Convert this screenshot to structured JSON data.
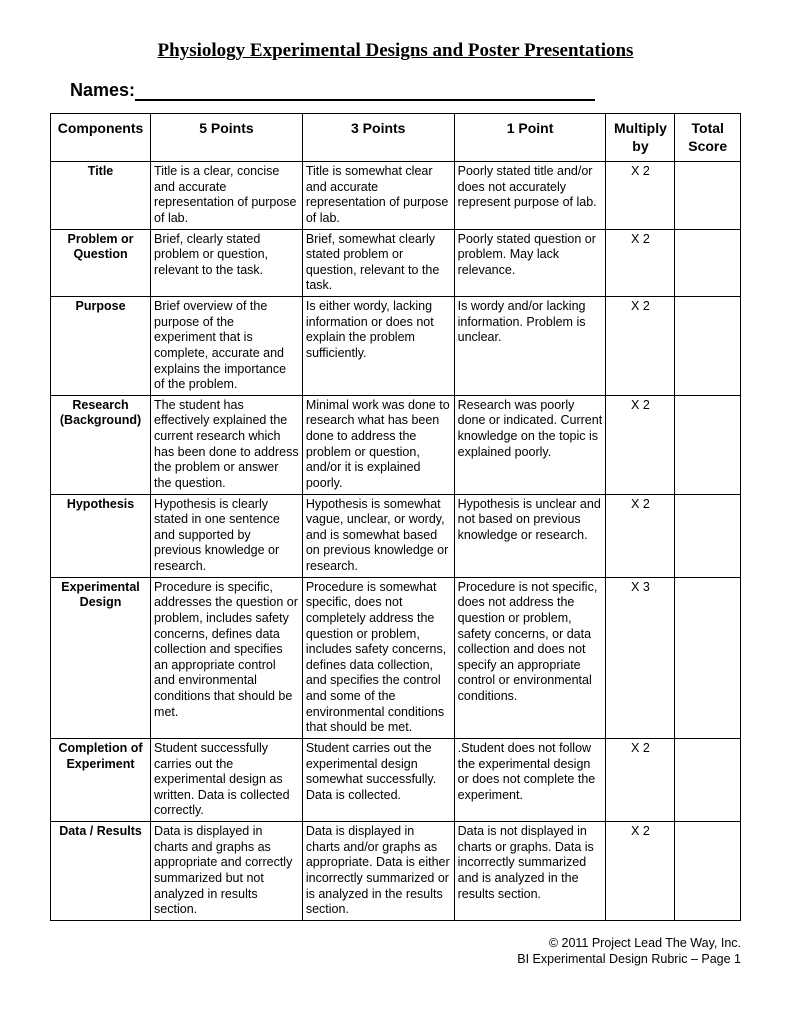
{
  "title": "Physiology Experimental Designs and Poster Presentations",
  "names_label": "Names:",
  "columns": {
    "components": "Components",
    "p5": "5 Points",
    "p3": "3 Points",
    "p1": "1 Point",
    "multiply": "Multiply by",
    "total": "Total Score"
  },
  "rows": [
    {
      "component": "Title",
      "p5": "Title is a clear, concise and accurate representation of purpose of lab.",
      "p3": "Title is somewhat clear and accurate representation of purpose of lab.",
      "p1": "Poorly stated title and/or does not accurately represent purpose of lab.",
      "mult": "X 2"
    },
    {
      "component": "Problem or Question",
      "p5": "Brief, clearly stated problem or question, relevant to the task.",
      "p3": "Brief, somewhat clearly stated problem or question, relevant to the task.",
      "p1": "Poorly stated question or problem. May lack relevance.",
      "mult": "X 2"
    },
    {
      "component": "Purpose",
      "p5": "Brief overview of the purpose of the experiment that is complete, accurate and explains the importance of the problem.",
      "p3": "Is either wordy, lacking information or does not explain the problem sufficiently.",
      "p1": "Is wordy and/or lacking information. Problem is unclear.",
      "mult": "X 2"
    },
    {
      "component": "Research (Background)",
      "p5": "The student has effectively explained the current research which has been done to address the problem or answer the question.",
      "p3": "Minimal work was done to research what has been done to address the problem or question, and/or it is explained poorly.",
      "p1": "Research was poorly done or indicated. Current knowledge on the topic is explained poorly.",
      "mult": "X 2"
    },
    {
      "component": "Hypothesis",
      "p5": "Hypothesis is clearly stated in one sentence and supported by previous knowledge or research.",
      "p3": "Hypothesis is somewhat vague, unclear, or wordy, and is somewhat based on previous knowledge or research.",
      "p1": "Hypothesis is unclear and not based on previous knowledge or research.",
      "mult": "X 2"
    },
    {
      "component": "Experimental Design",
      "p5": "Procedure is specific, addresses the question or problem, includes safety concerns, defines data collection and specifies an appropriate control and environmental conditions that should be met.",
      "p3": "Procedure is somewhat specific, does not completely address the question or problem, includes safety concerns, defines data collection, and specifies the control and some of the environmental conditions that should be met.",
      "p1": "Procedure is not specific, does not address the question or problem, safety concerns, or data collection and does not specify an appropriate control or environmental conditions.",
      "mult": "X 3"
    },
    {
      "component": "Completion of Experiment",
      "p5": "Student successfully carries out the experimental design as written. Data is collected correctly.",
      "p3": "Student carries out the experimental design somewhat successfully. Data is collected.",
      "p1": ".Student does not follow the experimental design or does not complete the experiment.",
      "mult": "X 2"
    },
    {
      "component": "Data / Results",
      "p5": "Data is displayed in charts and graphs as appropriate and correctly summarized but not analyzed in results section.",
      "p3": "Data is displayed in charts and/or graphs as appropriate.  Data is either incorrectly summarized or is analyzed in the results section.",
      "p1": "Data is not displayed in charts or graphs.  Data is incorrectly summarized and is analyzed in the results section.",
      "mult": "X 2"
    }
  ],
  "footer": {
    "line1": "© 2011 Project Lead The Way, Inc.",
    "line2": "BI Experimental Design Rubric – Page 1"
  }
}
